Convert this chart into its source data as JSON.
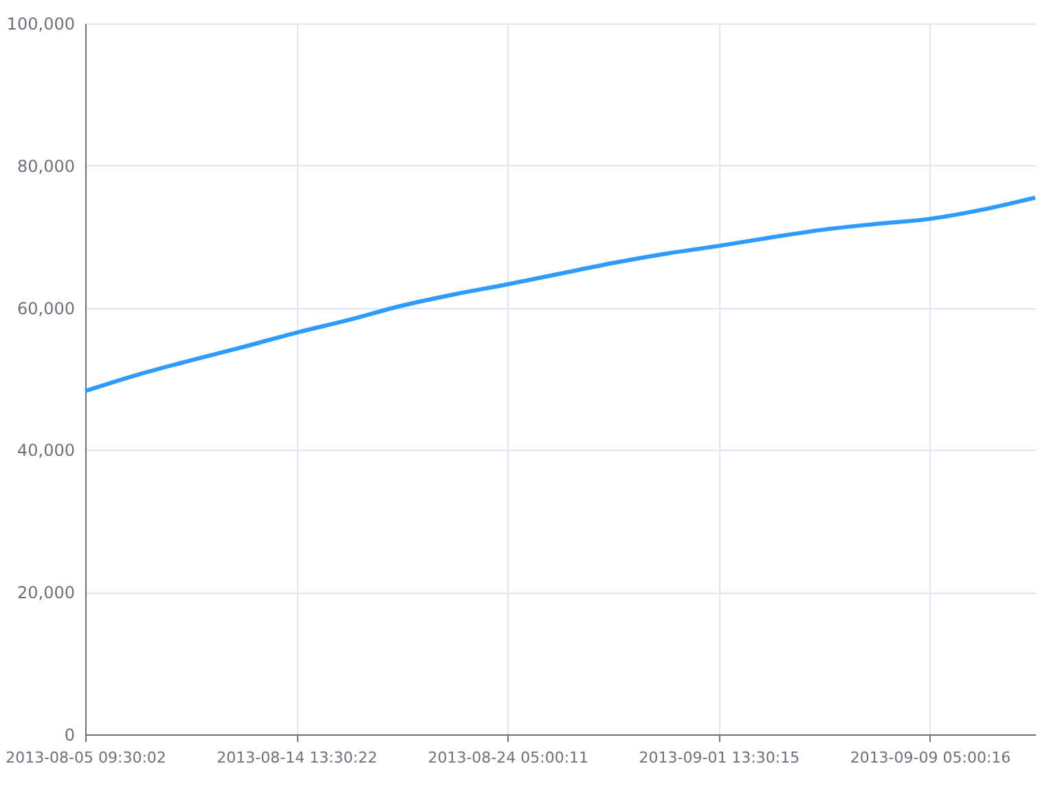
{
  "chart_data": {
    "type": "line",
    "categories": [
      "2013-08-05 09:30:02",
      null,
      null,
      null,
      "2013-08-14 13:30:22",
      null,
      null,
      null,
      "2013-08-24 05:00:11",
      null,
      null,
      null,
      "2013-09-01 13:30:15",
      null,
      null,
      null,
      "2013-09-09 05:00:16",
      null,
      null
    ],
    "series": [
      {
        "color": "#2f9bff",
        "values": [
          48300,
          50600,
          52600,
          54500,
          56500,
          58300,
          60300,
          61900,
          63300,
          64800,
          66300,
          67600,
          68700,
          69900,
          71000,
          71800,
          72500,
          73800,
          75500
        ]
      }
    ],
    "ylim": [
      0,
      100000
    ],
    "yticks": [
      0,
      {
        "value": 20000,
        "label": "20,000"
      },
      {
        "value": 40000,
        "label": "40,000"
      },
      {
        "value": 60000,
        "label": "60,000"
      },
      {
        "value": 80000,
        "label": "80,000"
      },
      {
        "value": 100000,
        "label": "100,000"
      }
    ],
    "grid": true,
    "line_style": "solid"
  }
}
